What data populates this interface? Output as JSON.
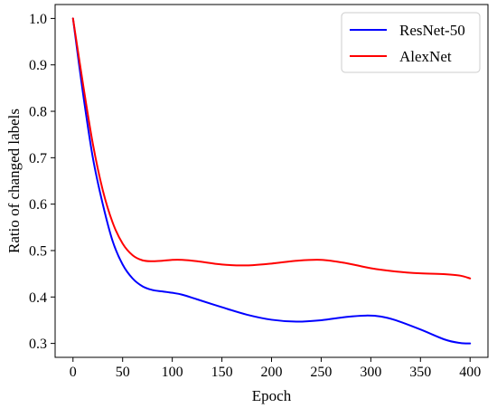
{
  "chart_data": {
    "type": "line",
    "title": "",
    "xlabel": "Epoch",
    "ylabel": "Ratio of changed labels",
    "xlim": [
      -18,
      418
    ],
    "ylim": [
      0.27,
      1.03
    ],
    "xticks": [
      0,
      50,
      100,
      150,
      200,
      250,
      300,
      350,
      400
    ],
    "yticks": [
      0.3,
      0.4,
      0.5,
      0.6,
      0.7,
      0.8,
      0.9,
      1.0
    ],
    "ytick_labels": [
      "0.3",
      "0.4",
      "0.5",
      "0.6",
      "0.7",
      "0.8",
      "0.9",
      "1.0"
    ],
    "grid": false,
    "legend_position": "top-right",
    "series": [
      {
        "name": "ResNet-50",
        "color": "#0000ff",
        "x": [
          0,
          10,
          20,
          30,
          40,
          50,
          60,
          70,
          80,
          90,
          100,
          110,
          125,
          150,
          175,
          200,
          225,
          250,
          275,
          295,
          310,
          325,
          350,
          375,
          390,
          400
        ],
        "y": [
          1.0,
          0.84,
          0.7,
          0.6,
          0.52,
          0.47,
          0.44,
          0.423,
          0.415,
          0.412,
          0.409,
          0.405,
          0.395,
          0.378,
          0.362,
          0.351,
          0.347,
          0.35,
          0.357,
          0.36,
          0.358,
          0.35,
          0.33,
          0.308,
          0.301,
          0.3
        ]
      },
      {
        "name": "AlexNet",
        "color": "#ff0000",
        "x": [
          0,
          10,
          20,
          30,
          40,
          50,
          60,
          70,
          80,
          90,
          100,
          110,
          125,
          150,
          175,
          200,
          225,
          250,
          275,
          300,
          325,
          350,
          375,
          390,
          400
        ],
        "y": [
          1.0,
          0.86,
          0.73,
          0.63,
          0.56,
          0.515,
          0.49,
          0.479,
          0.477,
          0.478,
          0.48,
          0.48,
          0.477,
          0.47,
          0.468,
          0.472,
          0.478,
          0.48,
          0.473,
          0.462,
          0.455,
          0.451,
          0.449,
          0.446,
          0.44
        ]
      }
    ]
  }
}
